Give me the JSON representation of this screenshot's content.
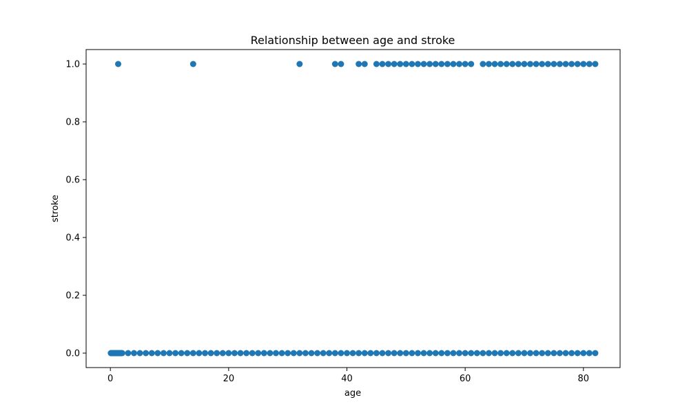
{
  "chart_data": {
    "type": "scatter",
    "title": "Relationship between age and stroke",
    "xlabel": "age",
    "ylabel": "stroke",
    "xlim": [
      -4.1,
      86.2
    ],
    "ylim": [
      -0.05,
      1.05
    ],
    "xticks": [
      0,
      20,
      40,
      60,
      80
    ],
    "yticks": [
      0.0,
      0.2,
      0.4,
      0.6,
      0.8,
      1.0
    ],
    "xtick_labels": [
      "0",
      "20",
      "40",
      "60",
      "80"
    ],
    "ytick_labels": [
      "0.0",
      "0.2",
      "0.4",
      "0.6",
      "0.8",
      "1.0"
    ],
    "grid": false,
    "marker_color": "#1f77b4",
    "series": [
      {
        "x": [
          0.08,
          0.16,
          0.24,
          0.32,
          0.4,
          0.48,
          0.56,
          0.64,
          0.72,
          0.8,
          0.88,
          1.0,
          1.08,
          1.16,
          1.24,
          1.32,
          1.4,
          1.48,
          1.56,
          1.64,
          1.72,
          1.8,
          1.88,
          2,
          3,
          4,
          5,
          6,
          7,
          8,
          9,
          10,
          11,
          12,
          13,
          14,
          15,
          16,
          17,
          18,
          19,
          20,
          21,
          22,
          23,
          24,
          25,
          26,
          27,
          28,
          29,
          30,
          31,
          32,
          33,
          34,
          35,
          36,
          37,
          38,
          39,
          40,
          41,
          42,
          43,
          44,
          45,
          46,
          47,
          48,
          49,
          50,
          51,
          52,
          53,
          54,
          55,
          56,
          57,
          58,
          59,
          60,
          61,
          62,
          63,
          64,
          65,
          66,
          67,
          68,
          69,
          70,
          71,
          72,
          73,
          74,
          75,
          76,
          77,
          78,
          79,
          80,
          81,
          82,
          1.32,
          14,
          32,
          38,
          39,
          42,
          43,
          45,
          46,
          47,
          48,
          49,
          50,
          51,
          52,
          53,
          54,
          55,
          56,
          57,
          58,
          59,
          60,
          61,
          63,
          64,
          65,
          66,
          67,
          68,
          69,
          70,
          71,
          72,
          73,
          74,
          75,
          76,
          77,
          78,
          79,
          80,
          81,
          82
        ],
        "y": [
          0,
          0,
          0,
          0,
          0,
          0,
          0,
          0,
          0,
          0,
          0,
          0,
          0,
          0,
          0,
          0,
          0,
          0,
          0,
          0,
          0,
          0,
          0,
          0,
          0,
          0,
          0,
          0,
          0,
          0,
          0,
          0,
          0,
          0,
          0,
          0,
          0,
          0,
          0,
          0,
          0,
          0,
          0,
          0,
          0,
          0,
          0,
          0,
          0,
          0,
          0,
          0,
          0,
          0,
          0,
          0,
          0,
          0,
          0,
          0,
          0,
          0,
          0,
          0,
          0,
          0,
          0,
          0,
          0,
          0,
          0,
          0,
          0,
          0,
          0,
          0,
          0,
          0,
          0,
          0,
          0,
          0,
          0,
          0,
          0,
          0,
          0,
          0,
          0,
          0,
          0,
          0,
          0,
          0,
          0,
          0,
          0,
          0,
          0,
          0,
          0,
          0,
          0,
          0,
          1,
          1,
          1,
          1,
          1,
          1,
          1,
          1,
          1,
          1,
          1,
          1,
          1,
          1,
          1,
          1,
          1,
          1,
          1,
          1,
          1,
          1,
          1,
          1,
          1,
          1,
          1,
          1,
          1,
          1,
          1,
          1,
          1,
          1,
          1,
          1,
          1,
          1,
          1,
          1,
          1,
          1,
          1,
          1
        ]
      }
    ]
  }
}
